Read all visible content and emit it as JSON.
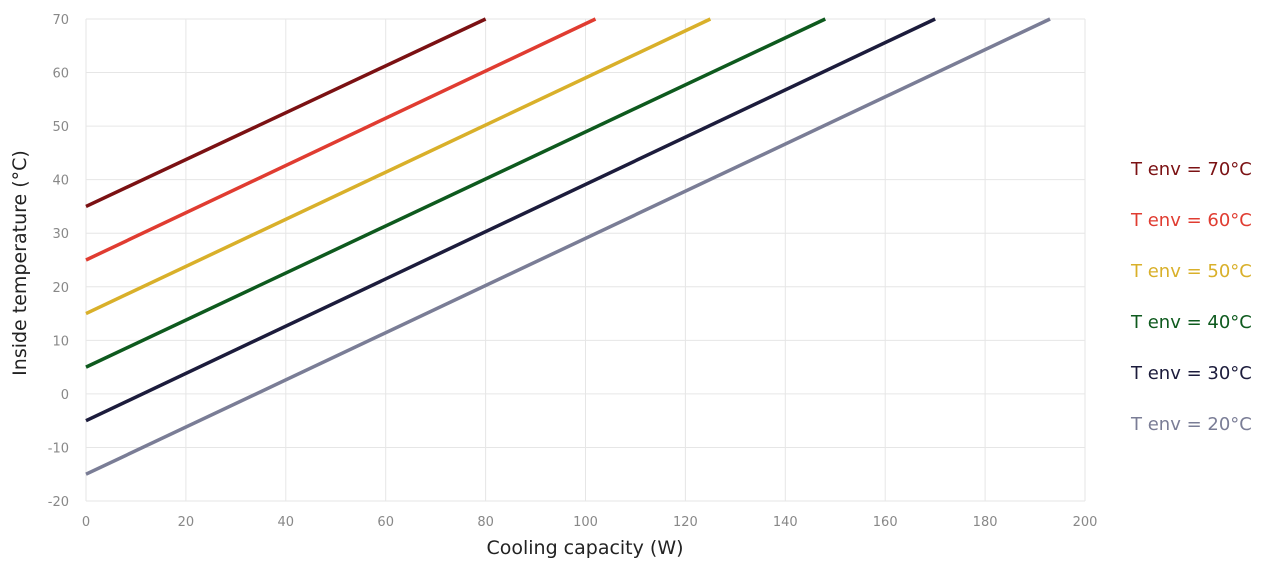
{
  "chart_data": {
    "type": "line",
    "xlabel": "Cooling capacity (W)",
    "ylabel": "Inside temperature (°C)",
    "xlim": [
      0,
      200
    ],
    "ylim": [
      -20,
      70
    ],
    "xticks": [
      0,
      20,
      40,
      60,
      80,
      100,
      120,
      140,
      160,
      180,
      200
    ],
    "yticks": [
      -20,
      -10,
      0,
      10,
      20,
      30,
      40,
      50,
      60,
      70
    ],
    "grid": true,
    "legend_position": "right",
    "series": [
      {
        "name": "T env = 70°C",
        "color": "#7b1113",
        "x": [
          0,
          80
        ],
        "y": [
          35,
          70
        ]
      },
      {
        "name": "T env = 60°C",
        "color": "#e03c31",
        "x": [
          0,
          102
        ],
        "y": [
          25,
          70
        ]
      },
      {
        "name": "T env = 50°C",
        "color": "#d9b02a",
        "x": [
          0,
          125
        ],
        "y": [
          15,
          70
        ]
      },
      {
        "name": "T env = 40°C",
        "color": "#0e5a1e",
        "x": [
          0,
          148
        ],
        "y": [
          5,
          70
        ]
      },
      {
        "name": "T env = 30°C",
        "color": "#1c1c3c",
        "x": [
          0,
          170
        ],
        "y": [
          -5,
          70
        ]
      },
      {
        "name": "T env = 20°C",
        "color": "#7a7d96",
        "x": [
          0,
          193
        ],
        "y": [
          -15,
          70
        ]
      }
    ]
  }
}
